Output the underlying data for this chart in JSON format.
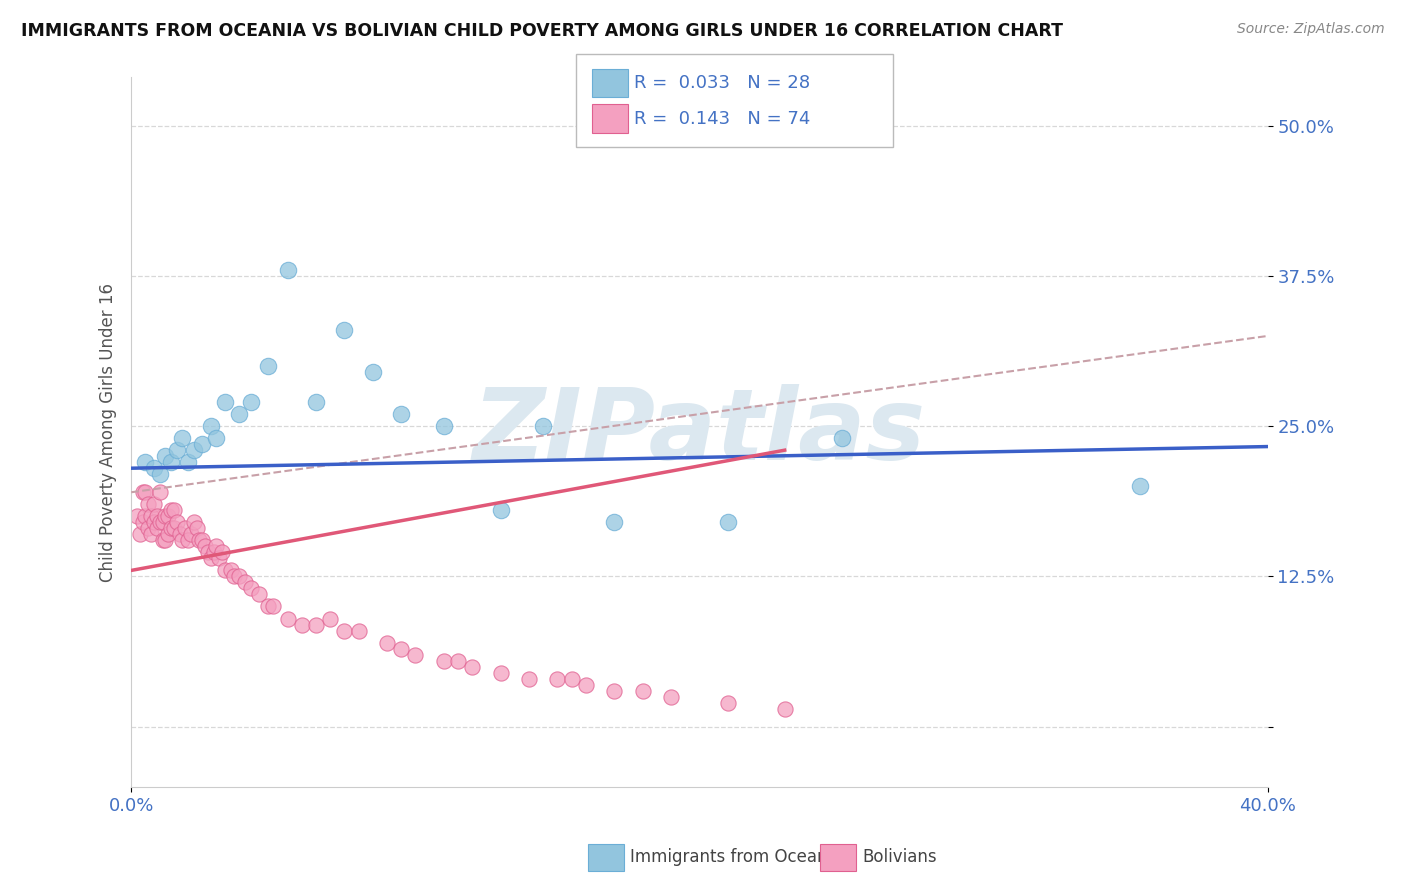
{
  "title": "IMMIGRANTS FROM OCEANIA VS BOLIVIAN CHILD POVERTY AMONG GIRLS UNDER 16 CORRELATION CHART",
  "source": "Source: ZipAtlas.com",
  "ylabel": "Child Poverty Among Girls Under 16",
  "yticks": [
    0.0,
    0.125,
    0.25,
    0.375,
    0.5
  ],
  "ytick_labels": [
    "",
    "12.5%",
    "25.0%",
    "37.5%",
    "50.0%"
  ],
  "xlim": [
    0.0,
    0.4
  ],
  "ylim": [
    -0.05,
    0.54
  ],
  "legend1_r": "0.033",
  "legend1_n": "28",
  "legend2_r": "0.143",
  "legend2_n": "74",
  "oceania_color": "#92c5de",
  "bolivian_color": "#f4a0c0",
  "oceania_edge_color": "#6baed6",
  "bolivian_edge_color": "#e06090",
  "trend_blue": "#3a5fc8",
  "trend_pink": "#e05878",
  "trend_dash": "#c8a0a8",
  "oceania_scatter_x": [
    0.005,
    0.008,
    0.01,
    0.012,
    0.014,
    0.016,
    0.018,
    0.02,
    0.022,
    0.025,
    0.028,
    0.03,
    0.033,
    0.038,
    0.042,
    0.048,
    0.055,
    0.065,
    0.075,
    0.085,
    0.095,
    0.11,
    0.13,
    0.145,
    0.17,
    0.21,
    0.25,
    0.355
  ],
  "oceania_scatter_y": [
    0.22,
    0.215,
    0.21,
    0.225,
    0.22,
    0.23,
    0.24,
    0.22,
    0.23,
    0.235,
    0.25,
    0.24,
    0.27,
    0.26,
    0.27,
    0.3,
    0.38,
    0.27,
    0.33,
    0.295,
    0.26,
    0.25,
    0.18,
    0.25,
    0.17,
    0.17,
    0.24,
    0.2
  ],
  "bolivian_scatter_x": [
    0.002,
    0.003,
    0.004,
    0.004,
    0.005,
    0.005,
    0.006,
    0.006,
    0.007,
    0.007,
    0.008,
    0.008,
    0.009,
    0.009,
    0.01,
    0.01,
    0.011,
    0.011,
    0.012,
    0.012,
    0.013,
    0.013,
    0.014,
    0.014,
    0.015,
    0.015,
    0.016,
    0.017,
    0.018,
    0.019,
    0.02,
    0.021,
    0.022,
    0.023,
    0.024,
    0.025,
    0.026,
    0.027,
    0.028,
    0.029,
    0.03,
    0.031,
    0.032,
    0.033,
    0.035,
    0.036,
    0.038,
    0.04,
    0.042,
    0.045,
    0.048,
    0.05,
    0.055,
    0.06,
    0.065,
    0.07,
    0.075,
    0.08,
    0.09,
    0.095,
    0.1,
    0.11,
    0.115,
    0.12,
    0.13,
    0.14,
    0.15,
    0.155,
    0.16,
    0.17,
    0.18,
    0.19,
    0.21,
    0.23
  ],
  "bolivian_scatter_y": [
    0.175,
    0.16,
    0.17,
    0.195,
    0.175,
    0.195,
    0.165,
    0.185,
    0.16,
    0.175,
    0.17,
    0.185,
    0.175,
    0.165,
    0.17,
    0.195,
    0.155,
    0.17,
    0.155,
    0.175,
    0.16,
    0.175,
    0.165,
    0.18,
    0.165,
    0.18,
    0.17,
    0.16,
    0.155,
    0.165,
    0.155,
    0.16,
    0.17,
    0.165,
    0.155,
    0.155,
    0.15,
    0.145,
    0.14,
    0.145,
    0.15,
    0.14,
    0.145,
    0.13,
    0.13,
    0.125,
    0.125,
    0.12,
    0.115,
    0.11,
    0.1,
    0.1,
    0.09,
    0.085,
    0.085,
    0.09,
    0.08,
    0.08,
    0.07,
    0.065,
    0.06,
    0.055,
    0.055,
    0.05,
    0.045,
    0.04,
    0.04,
    0.04,
    0.035,
    0.03,
    0.03,
    0.025,
    0.02,
    0.015
  ],
  "background_color": "#ffffff",
  "grid_color": "#d8d8d8",
  "watermark_text": "ZIPatlas",
  "watermark_color": "#dce8f0"
}
